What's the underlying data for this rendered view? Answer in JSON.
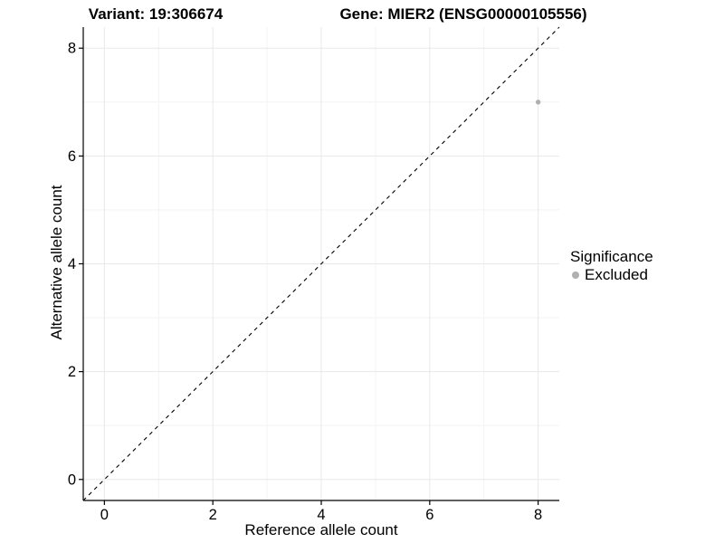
{
  "chart_data": {
    "type": "scatter",
    "titles": {
      "variant": "Variant: 19:306674",
      "gene": "Gene: MIER2 (ENSG00000105556)"
    },
    "xlabel": "Reference allele count",
    "ylabel": "Alternative allele count",
    "xlim": [
      -0.39,
      8.39
    ],
    "ylim": [
      -0.39,
      8.39
    ],
    "x_ticks": [
      0,
      2,
      4,
      6,
      8
    ],
    "x_minor_ticks": [
      1,
      3,
      5,
      7
    ],
    "y_ticks": [
      0,
      2,
      4,
      6,
      8
    ],
    "y_minor_ticks": [
      1,
      3,
      5,
      7
    ],
    "grid": "major and minor gridlines on white background",
    "legend": {
      "title": "Significance",
      "position": "right",
      "items": [
        {
          "label": "Excluded",
          "color": "#b0b0b0"
        }
      ]
    },
    "series": [
      {
        "name": "Excluded",
        "color": "#b0b0b0",
        "points": [
          {
            "x": 8,
            "y": 7
          }
        ]
      }
    ],
    "reference_line": {
      "type": "identity y=x",
      "style": "dashed",
      "color": "#000000"
    },
    "colors": {
      "background": "#ffffff",
      "grid_major": "#e8e8e8",
      "grid_minor": "#f3f3f3",
      "axis": "#000000",
      "text": "#000000"
    }
  }
}
